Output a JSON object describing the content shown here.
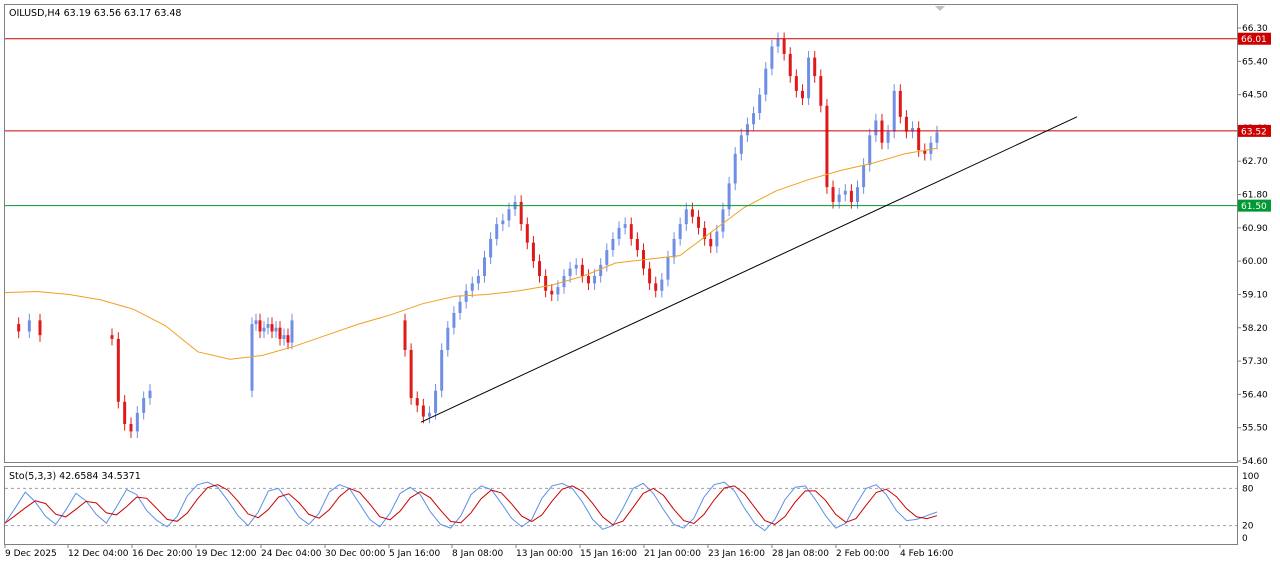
{
  "window": {
    "symbol_header": "OILUSD,H4  63.19 63.56 63.17 63.48"
  },
  "stoch_header": "Sto(5,3,3) 42.6584 34.5371",
  "colors": {
    "bull_candle": "#6f8fe6",
    "bear_candle": "#e01a1a",
    "ma_line": "#f0a020",
    "resistance": "#cc0000",
    "support": "#009933",
    "trendline": "#000000",
    "stoch_main": "#5b8fe8",
    "stoch_signal": "#cc0000"
  },
  "chart_data": [
    {
      "type": "candlestick",
      "symbol": "OILUSD",
      "timeframe": "H4",
      "ohlc_readout": {
        "open": 63.19,
        "high": 63.56,
        "low": 63.17,
        "close": 63.48
      },
      "y_ticks": [
        "66.30",
        "65.40",
        "64.50",
        "63.60",
        "62.70",
        "61.80",
        "60.90",
        "60.00",
        "59.10",
        "58.20",
        "57.30",
        "56.40",
        "55.50",
        "54.60"
      ],
      "ylim": [
        54.6,
        66.6
      ],
      "x_ticks": [
        "9 Dec 2025",
        "12 Dec 04:00",
        "16 Dec 20:00",
        "19 Dec 12:00",
        "24 Dec 04:00",
        "30 Dec 00:00",
        "5 Jan 16:00",
        "8 Jan 08:00",
        "13 Jan 00:00",
        "15 Jan 16:00",
        "21 Jan 00:00",
        "23 Jan 16:00",
        "28 Jan 08:00",
        "2 Feb 00:00",
        "4 Feb 16:00"
      ],
      "horizontal_levels": [
        {
          "label": "66.01",
          "value": 66.01,
          "color": "#cc0000"
        },
        {
          "label": "63.52",
          "value": 63.52,
          "color": "#cc0000"
        },
        {
          "label": "61.50",
          "value": 61.5,
          "color": "#009933"
        }
      ],
      "trendline": {
        "from": 55.65,
        "to": 63.9
      },
      "close_series": [
        58.3,
        58.1,
        58.4,
        58.0,
        57.9,
        56.2,
        55.6,
        55.4,
        55.9,
        56.3,
        56.5,
        58.3,
        58.4,
        58.1,
        58.2,
        58.3,
        58.1,
        58.2,
        57.9,
        58.0,
        57.8,
        58.4,
        57.6,
        56.3,
        56.1,
        55.8,
        55.9,
        56.5,
        57.6,
        58.2,
        58.6,
        58.9,
        59.2,
        59.4,
        59.6,
        60.1,
        60.6,
        61.0,
        61.1,
        61.4,
        61.6,
        61.0,
        60.5,
        60.0,
        59.6,
        59.2,
        59.1,
        59.3,
        59.6,
        59.8,
        59.9,
        59.6,
        59.4,
        59.6,
        59.9,
        60.3,
        60.6,
        60.9,
        61.0,
        60.6,
        60.3,
        59.8,
        59.4,
        59.2,
        59.5,
        60.1,
        60.6,
        61.0,
        61.4,
        61.2,
        60.9,
        60.6,
        60.4,
        60.8,
        61.4,
        62.1,
        62.9,
        63.4,
        63.7,
        64.0,
        64.5,
        65.2,
        65.8,
        66.0,
        65.6,
        65.0,
        64.6,
        64.4,
        65.5,
        65.0,
        64.2,
        62.0,
        61.6,
        61.8,
        61.9,
        61.6,
        62.0,
        62.6,
        63.4,
        63.8,
        63.2,
        63.5,
        64.6,
        63.9,
        63.5,
        63.6,
        63.0,
        62.9,
        63.2,
        63.48
      ],
      "ma_series": [
        59.15,
        59.18,
        59.1,
        58.95,
        58.7,
        58.25,
        57.55,
        57.35,
        57.45,
        57.7,
        58.0,
        58.3,
        58.55,
        58.85,
        59.05,
        59.1,
        59.2,
        59.35,
        59.6,
        59.95,
        60.05,
        60.15,
        60.8,
        61.45,
        61.9,
        62.2,
        62.45,
        62.65,
        62.9,
        63.05
      ],
      "type_indicator": "stochastic",
      "stochastic": {
        "params": "5,3,3",
        "main": 42.6584,
        "signal": 34.5371,
        "levels": [
          80,
          20
        ],
        "ylim": [
          0,
          100
        ],
        "y_ticks": [
          "100",
          "80",
          "20",
          "0"
        ],
        "main_series": [
          24,
          48,
          74,
          58,
          35,
          22,
          45,
          72,
          60,
          38,
          24,
          50,
          78,
          70,
          44,
          28,
          18,
          35,
          68,
          86,
          90,
          82,
          60,
          36,
          20,
          42,
          76,
          80,
          58,
          34,
          22,
          40,
          74,
          86,
          80,
          55,
          30,
          18,
          40,
          72,
          82,
          70,
          42,
          22,
          16,
          36,
          70,
          84,
          78,
          56,
          32,
          18,
          30,
          64,
          84,
          88,
          80,
          58,
          30,
          14,
          20,
          48,
          80,
          88,
          72,
          46,
          22,
          16,
          32,
          66,
          86,
          90,
          76,
          48,
          24,
          12,
          30,
          62,
          82,
          84,
          62,
          36,
          16,
          24,
          54,
          80,
          86,
          70,
          44,
          28,
          30,
          36,
          42
        ]
      }
    }
  ]
}
